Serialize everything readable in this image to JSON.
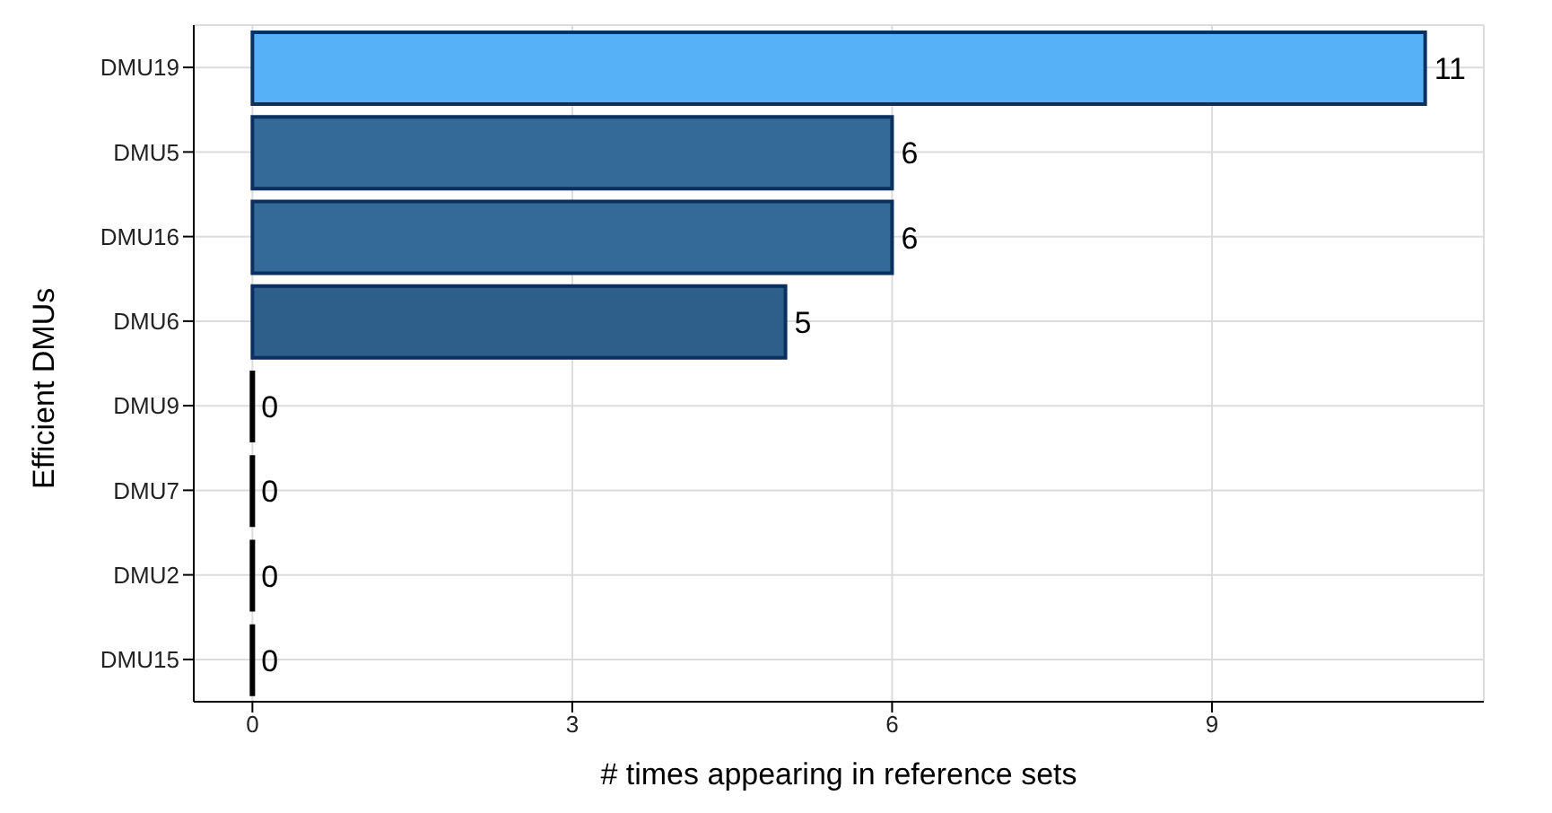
{
  "chart_data": {
    "type": "bar",
    "orientation": "horizontal",
    "categories": [
      "DMU19",
      "DMU5",
      "DMU16",
      "DMU6",
      "DMU9",
      "DMU7",
      "DMU2",
      "DMU15"
    ],
    "values": [
      11,
      6,
      6,
      5,
      0,
      0,
      0,
      0
    ],
    "colors": [
      "#56b1f7",
      "#336a98",
      "#336a98",
      "#2e5f8a",
      "#000000",
      "#000000",
      "#000000",
      "#000000"
    ],
    "xlim": [
      -0.55,
      11.55
    ],
    "xticks": [
      0,
      3,
      6,
      9
    ],
    "xlabel": "# times appearing in reference sets",
    "ylabel": "Efficient DMUs",
    "grid": true,
    "data_labels": true,
    "legend": false
  }
}
